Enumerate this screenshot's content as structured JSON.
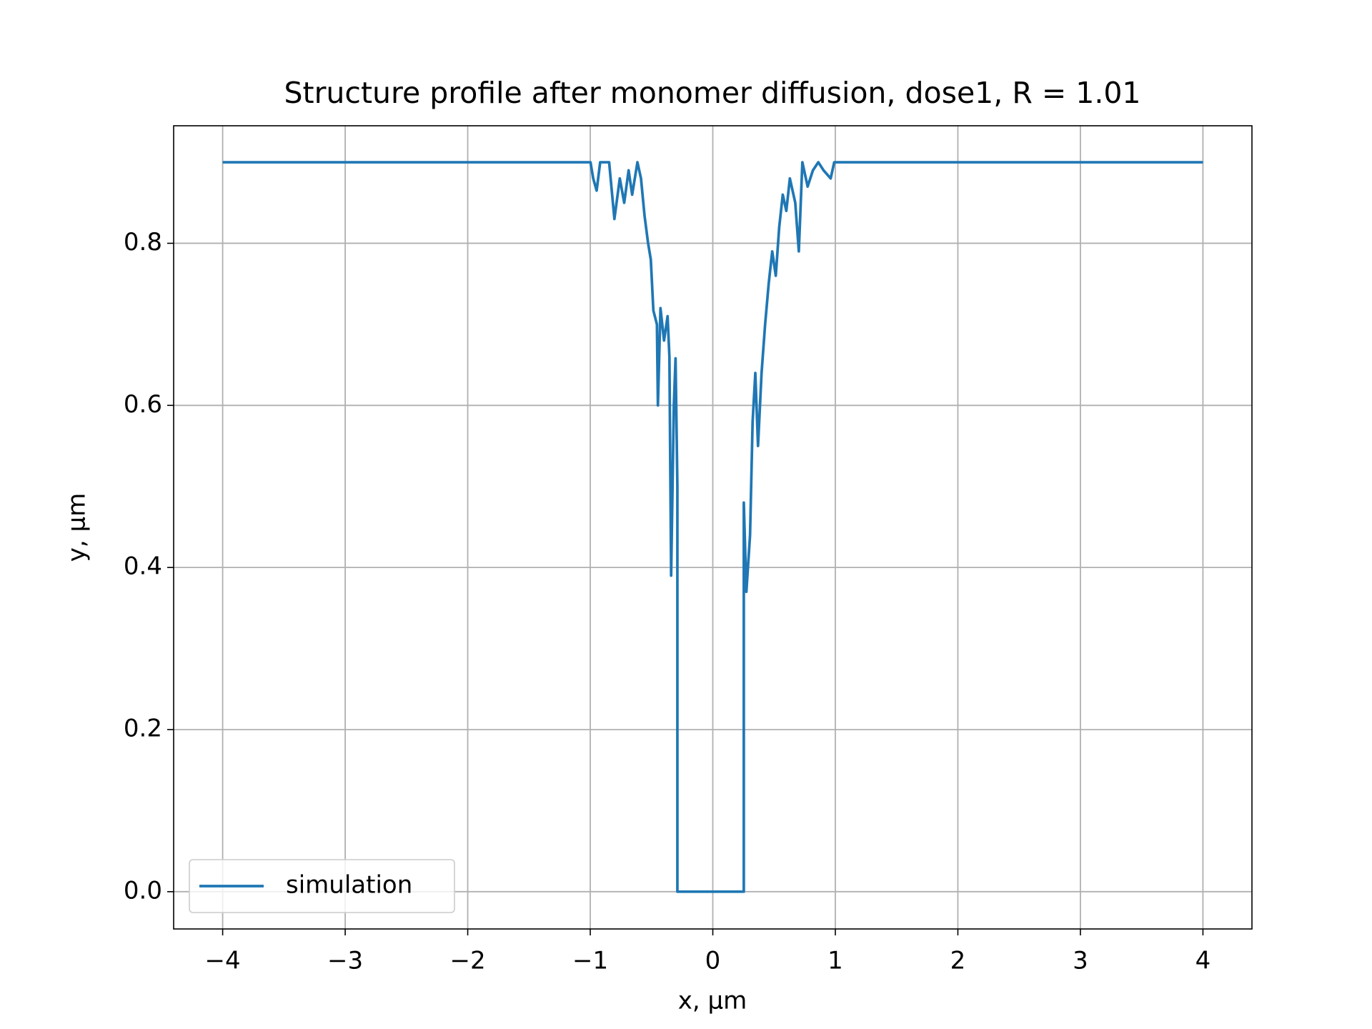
{
  "chart_data": {
    "type": "line",
    "title": "Structure profile after monomer diffusion, dose1, R = 1.01",
    "xlabel": "x, μm",
    "ylabel": "y, μm",
    "x": [
      -4,
      -0.998,
      -0.976,
      -0.948,
      -0.919,
      -0.846,
      -0.803,
      -0.759,
      -0.723,
      -0.687,
      -0.658,
      -0.615,
      -0.586,
      -0.557,
      -0.528,
      -0.506,
      -0.485,
      -0.456,
      -0.448,
      -0.427,
      -0.398,
      -0.369,
      -0.354,
      -0.34,
      -0.318,
      -0.304,
      -0.289,
      -0.289,
      0.253,
      0.253,
      0.274,
      0.304,
      0.325,
      0.347,
      0.369,
      0.398,
      0.427,
      0.456,
      0.485,
      0.514,
      0.542,
      0.571,
      0.6,
      0.629,
      0.673,
      0.702,
      0.731,
      0.774,
      0.817,
      0.861,
      0.904,
      0.962,
      0.991,
      4
    ],
    "series": [
      {
        "name": "simulation",
        "color": "#1f77b4",
        "values": [
          0.9,
          0.9,
          0.88,
          0.865,
          0.9,
          0.9,
          0.83,
          0.88,
          0.85,
          0.89,
          0.86,
          0.9,
          0.88,
          0.834,
          0.8,
          0.78,
          0.717,
          0.7,
          0.6,
          0.72,
          0.68,
          0.71,
          0.66,
          0.39,
          0.6,
          0.658,
          0.5,
          0,
          0,
          0.48,
          0.37,
          0.44,
          0.58,
          0.64,
          0.55,
          0.64,
          0.7,
          0.75,
          0.79,
          0.76,
          0.82,
          0.86,
          0.84,
          0.88,
          0.85,
          0.79,
          0.9,
          0.87,
          0.89,
          0.9,
          0.89,
          0.88,
          0.9,
          0.9
        ]
      }
    ],
    "xlim": [
      -4.4,
      4.4
    ],
    "xticks": [
      {
        "value": -4,
        "label": "−4"
      },
      {
        "value": -3,
        "label": "−3"
      },
      {
        "value": -2,
        "label": "−2"
      },
      {
        "value": -1,
        "label": "−1"
      },
      0,
      1,
      2,
      3,
      4
    ],
    "ylim": [
      -0.046,
      0.945
    ],
    "yticks": [
      {
        "value": 0,
        "label": "0.0"
      },
      0.2,
      0.4,
      0.6,
      0.8
    ],
    "grid": true,
    "legend": "lower left"
  }
}
